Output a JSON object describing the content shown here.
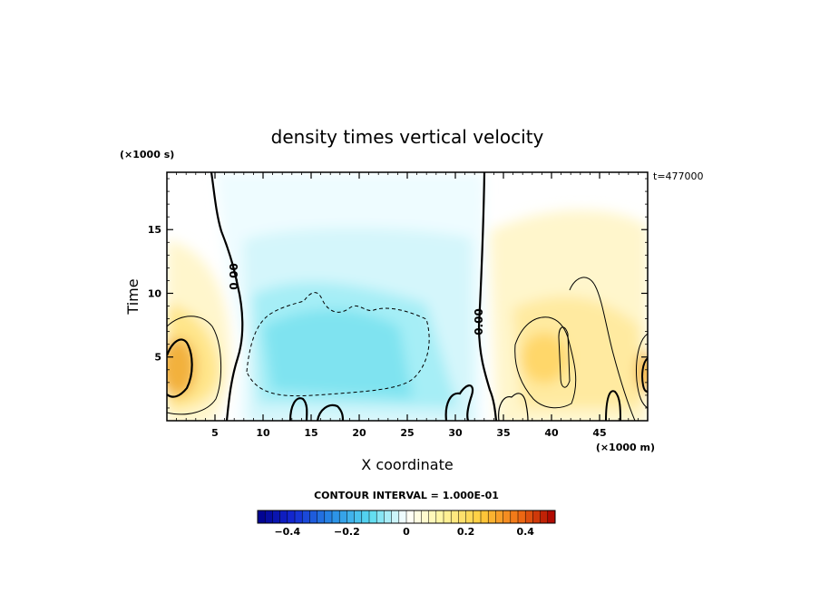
{
  "chart_data": {
    "type": "heatmap",
    "title": "density times vertical velocity",
    "xlabel": "X coordinate",
    "ylabel": "Time",
    "x_unit_label": "(×1000 m)",
    "y_unit_label": "(×1000 s)",
    "time_stamp": "t=477000",
    "xlim": [
      0,
      50
    ],
    "ylim": [
      0,
      19.5
    ],
    "x_ticks": [
      5,
      10,
      15,
      20,
      25,
      30,
      35,
      40,
      45
    ],
    "x_tick_labels": [
      "5",
      "10",
      "15",
      "20",
      "25",
      "30",
      "35",
      "40",
      "45"
    ],
    "y_ticks": [
      5,
      10,
      15
    ],
    "y_tick_labels": [
      "5",
      "10",
      "15"
    ],
    "contour_interval_text": "CONTOUR INTERVAL = 1.000E-01",
    "contour_labels": [
      "0.00",
      "0.00"
    ],
    "colorbar": {
      "min": -0.5,
      "max": 0.5,
      "ticks": [
        -0.4,
        -0.2,
        0,
        0.2,
        0.4
      ],
      "tick_labels": [
        "−0.4",
        "−0.2",
        "0",
        "0.2",
        "0.4"
      ]
    },
    "features": [
      {
        "kind": "positive",
        "x": 1.5,
        "y": 4.5,
        "peak": 0.3
      },
      {
        "kind": "negative",
        "x": 19,
        "y": 6,
        "peak": -0.12
      },
      {
        "kind": "positive",
        "x": 40,
        "y": 6,
        "peak": 0.15
      }
    ]
  }
}
